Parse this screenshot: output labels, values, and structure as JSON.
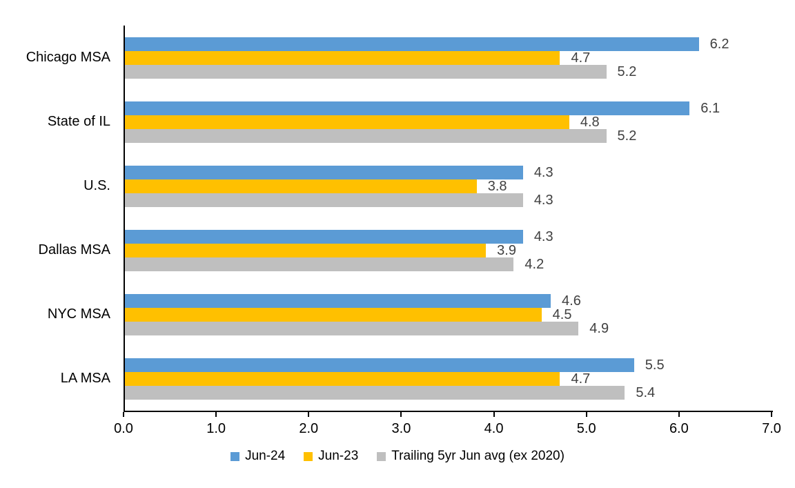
{
  "chart_data": {
    "type": "bar",
    "orientation": "horizontal",
    "title": "",
    "xlabel": "",
    "ylabel": "",
    "categories": [
      "Chicago MSA",
      "State of IL",
      "U.S.",
      "Dallas MSA",
      "NYC MSA",
      "LA MSA"
    ],
    "series": [
      {
        "name": "Jun-24",
        "color": "#5B9BD5",
        "values": [
          6.2,
          6.1,
          4.3,
          4.3,
          4.6,
          5.5
        ]
      },
      {
        "name": "Jun-23",
        "color": "#FFC000",
        "values": [
          4.7,
          4.8,
          3.8,
          3.9,
          4.5,
          4.7
        ]
      },
      {
        "name": "Trailing 5yr Jun avg (ex 2020)",
        "color": "#BFBFBF",
        "values": [
          5.2,
          5.2,
          4.3,
          4.2,
          4.9,
          5.4
        ]
      }
    ],
    "xlim": [
      0,
      7
    ],
    "x_ticks": [
      "0.0",
      "1.0",
      "2.0",
      "3.0",
      "4.0",
      "5.0",
      "6.0",
      "7.0"
    ],
    "grid": false,
    "legend_position": "bottom",
    "data_labels": "outside-end, one decimal",
    "data_label_color": "#404040",
    "axis_color": "#000000",
    "background_color": "#FFFFFF"
  }
}
